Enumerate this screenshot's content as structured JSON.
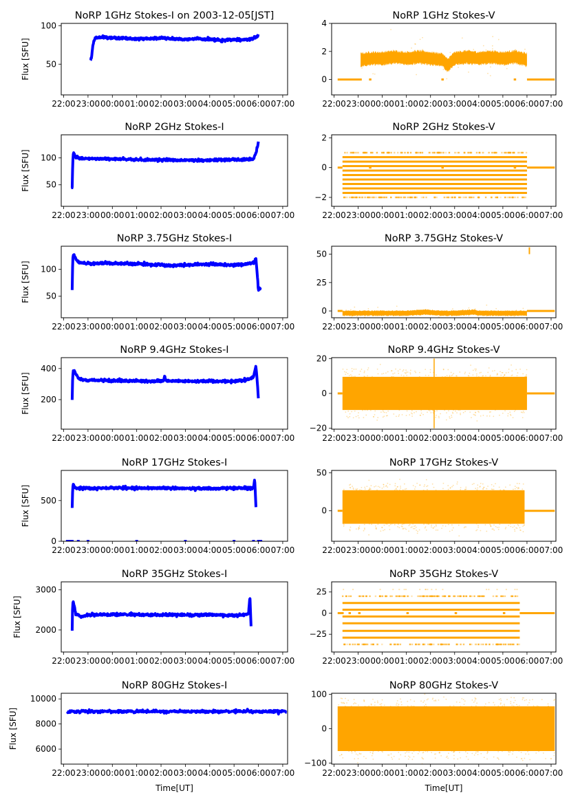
{
  "figure": {
    "suptitle_date": "2003-12-05[JST]",
    "xlabel": "Time[UT]",
    "ylabel": "Flux [SFU]",
    "colors": {
      "stokes_i": "#0000ff",
      "stokes_v": "#ffa500",
      "axis": "#000000"
    }
  },
  "chart_data": [
    {
      "type": "scatter",
      "panel": "1GHz-I",
      "title": "NoRP 1GHz Stokes-I on 2003-12-05[JST]",
      "xlabel": "",
      "ylabel": "Flux [SFU]",
      "xticks": [
        "22:00",
        "23:00",
        "00:00",
        "01:00",
        "02:00",
        "03:00",
        "04:00",
        "05:00",
        "06:00",
        "07:00"
      ],
      "xlim_hours": [
        -0.1,
        9.2
      ],
      "yticks": [
        50,
        100
      ],
      "ylim": [
        10,
        103
      ],
      "series": [
        {
          "name": "Stokes-I",
          "color": "#0000ff",
          "x": [
            1.1,
            1.15,
            1.2,
            1.3,
            1.5,
            2,
            3,
            4,
            4.5,
            5,
            5.5,
            6,
            6.5,
            7,
            7.5,
            7.8,
            7.95,
            8.0
          ],
          "y": [
            55,
            60,
            75,
            84,
            85,
            84,
            83,
            84,
            83,
            82,
            83,
            82,
            81,
            82,
            82,
            83,
            86,
            89
          ]
        }
      ]
    },
    {
      "type": "scatter",
      "panel": "1GHz-V",
      "title": "NoRP 1GHz Stokes-V",
      "xlabel": "",
      "ylabel": "",
      "xticks": [
        "22:00",
        "23:00",
        "00:00",
        "01:00",
        "02:00",
        "03:00",
        "04:00",
        "05:00",
        "06:00",
        "07:00"
      ],
      "xlim_hours": [
        -0.1,
        9.2
      ],
      "yticks": [
        0,
        2,
        4
      ],
      "ylim": [
        -1.1,
        4.0
      ],
      "series": [
        {
          "name": "Stokes-V",
          "color": "#ffa500",
          "x": [
            1.1,
            1.5,
            2,
            2.5,
            3,
            3.5,
            4,
            4.5,
            4.7,
            5,
            5.5,
            6,
            6.5,
            7,
            7.5,
            8.0
          ],
          "y": [
            1.4,
            1.5,
            1.5,
            1.6,
            1.5,
            1.6,
            1.5,
            1.4,
            1.0,
            1.5,
            1.6,
            1.5,
            1.6,
            1.5,
            1.6,
            1.4
          ],
          "spread": 0.45,
          "zero_segments": [
            [
              0.15,
              1.15
            ],
            [
              1.45,
              1.55
            ],
            [
              4.45,
              4.55
            ],
            [
              7.45,
              7.55
            ],
            [
              8.0,
              9.15
            ]
          ]
        }
      ]
    },
    {
      "type": "scatter",
      "panel": "2GHz-I",
      "title": "NoRP 2GHz Stokes-I",
      "xlabel": "",
      "ylabel": "Flux [SFU]",
      "xticks": [
        "22:00",
        "23:00",
        "00:00",
        "01:00",
        "02:00",
        "03:00",
        "04:00",
        "05:00",
        "06:00",
        "07:00"
      ],
      "xlim_hours": [
        -0.1,
        9.2
      ],
      "yticks": [
        50,
        100
      ],
      "ylim": [
        10,
        143
      ],
      "series": [
        {
          "name": "Stokes-I",
          "color": "#0000ff",
          "x": [
            0.35,
            0.37,
            0.4,
            0.5,
            0.7,
            1,
            2,
            3,
            4,
            5,
            6,
            7,
            7.5,
            7.8,
            7.9,
            8.0
          ],
          "y": [
            42,
            90,
            110,
            102,
            99,
            99,
            98,
            97,
            96,
            96,
            96,
            97,
            97,
            98,
            110,
            128
          ]
        }
      ]
    },
    {
      "type": "scatter",
      "panel": "2GHz-V",
      "title": "NoRP 2GHz Stokes-V",
      "xlabel": "",
      "ylabel": "",
      "xticks": [
        "22:00",
        "23:00",
        "00:00",
        "01:00",
        "02:00",
        "03:00",
        "04:00",
        "05:00",
        "06:00",
        "07:00"
      ],
      "xlim_hours": [
        -0.1,
        9.2
      ],
      "yticks": [
        -2,
        0,
        2
      ],
      "ylim": [
        -2.6,
        2.2
      ],
      "series": [
        {
          "name": "Stokes-V",
          "color": "#ffa500",
          "levels": [
            0.7,
            0.4,
            0.1,
            -0.2,
            -0.5,
            -0.8,
            -1.1,
            -1.4,
            -1.7
          ],
          "sparse_levels": [
            1.0,
            -2.0
          ],
          "x_range": [
            0.35,
            8.0
          ],
          "zero_segments": [
            [
              0.15,
              0.35
            ],
            [
              1.45,
              1.55
            ],
            [
              4.45,
              4.55
            ],
            [
              7.45,
              7.55
            ],
            [
              8.0,
              9.15
            ]
          ]
        }
      ]
    },
    {
      "type": "scatter",
      "panel": "3.75GHz-I",
      "title": "NoRP 3.75GHz Stokes-I",
      "xlabel": "",
      "ylabel": "Flux [SFU]",
      "xticks": [
        "22:00",
        "23:00",
        "00:00",
        "01:00",
        "02:00",
        "03:00",
        "04:00",
        "05:00",
        "06:00",
        "07:00"
      ],
      "xlim_hours": [
        -0.1,
        9.2
      ],
      "yticks": [
        50,
        100
      ],
      "ylim": [
        10,
        143
      ],
      "series": [
        {
          "name": "Stokes-I",
          "color": "#0000ff",
          "x": [
            0.35,
            0.37,
            0.4,
            0.6,
            1,
            1.5,
            2,
            3,
            4,
            4.5,
            5,
            6,
            7,
            7.5,
            7.8,
            7.9,
            8.0,
            8.1
          ],
          "y": [
            62,
            118,
            128,
            113,
            110,
            112,
            111,
            110,
            108,
            107,
            108,
            110,
            108,
            110,
            113,
            120,
            62,
            65
          ]
        }
      ]
    },
    {
      "type": "scatter",
      "panel": "3.75GHz-V",
      "title": "NoRP 3.75GHz Stokes-V",
      "xlabel": "",
      "ylabel": "",
      "xticks": [
        "22:00",
        "23:00",
        "00:00",
        "01:00",
        "02:00",
        "03:00",
        "04:00",
        "05:00",
        "06:00",
        "07:00"
      ],
      "xlim_hours": [
        -0.1,
        9.2
      ],
      "yticks": [
        0,
        25,
        50
      ],
      "ylim": [
        -6,
        57
      ],
      "series": [
        {
          "name": "Stokes-V",
          "color": "#ffa500",
          "x": [
            0.35,
            1,
            2,
            3,
            3.8,
            4.5,
            5,
            5.8,
            6,
            7,
            8.0
          ],
          "y": [
            -2,
            -2,
            -2,
            -2,
            -1,
            -2,
            -2,
            -1,
            -2,
            -2,
            -2
          ],
          "spread": 2.2,
          "outlier": {
            "x": 8.1,
            "y": 53
          },
          "zero_segments": [
            [
              0.15,
              0.35
            ],
            [
              8.0,
              9.15
            ]
          ]
        }
      ]
    },
    {
      "type": "scatter",
      "panel": "9.4GHz-I",
      "title": "NoRP 9.4GHz Stokes-I",
      "xlabel": "",
      "ylabel": "Flux [SFU]",
      "xticks": [
        "22:00",
        "23:00",
        "00:00",
        "01:00",
        "02:00",
        "03:00",
        "04:00",
        "05:00",
        "06:00",
        "07:00"
      ],
      "xlim_hours": [
        -0.1,
        9.2
      ],
      "yticks": [
        200,
        400
      ],
      "ylim": [
        10,
        470
      ],
      "series": [
        {
          "name": "Stokes-I",
          "color": "#0000ff",
          "x": [
            0.35,
            0.37,
            0.42,
            0.6,
            1,
            2,
            3,
            4,
            4.1,
            4.15,
            4.2,
            5,
            6,
            7,
            7.5,
            7.8,
            7.9,
            8.0
          ],
          "y": [
            200,
            360,
            390,
            335,
            325,
            322,
            320,
            318,
            320,
            350,
            322,
            318,
            318,
            318,
            325,
            345,
            420,
            210
          ]
        }
      ]
    },
    {
      "type": "scatter",
      "panel": "9.4GHz-V",
      "title": "NoRP 9.4GHz Stokes-V",
      "xlabel": "",
      "ylabel": "",
      "xticks": [
        "22:00",
        "23:00",
        "00:00",
        "01:00",
        "02:00",
        "03:00",
        "04:00",
        "05:00",
        "06:00",
        "07:00"
      ],
      "xlim_hours": [
        -0.1,
        9.2
      ],
      "yticks": [
        -20,
        0,
        20
      ],
      "ylim": [
        -20.5,
        20.5
      ],
      "series": [
        {
          "name": "Stokes-V",
          "color": "#ffa500",
          "x_range": [
            0.35,
            8.0
          ],
          "center": 0,
          "core": 9.5,
          "halo": 14,
          "spike": {
            "x": 4.15,
            "ymin": -20,
            "ymax": 20
          },
          "zero_segments": [
            [
              0.15,
              0.35
            ],
            [
              8.0,
              9.15
            ]
          ]
        }
      ]
    },
    {
      "type": "scatter",
      "panel": "17GHz-I",
      "title": "NoRP 17GHz Stokes-I",
      "xlabel": "",
      "ylabel": "Flux [SFU]",
      "xticks": [
        "22:00",
        "23:00",
        "00:00",
        "01:00",
        "02:00",
        "03:00",
        "04:00",
        "05:00",
        "06:00",
        "07:00"
      ],
      "xlim_hours": [
        -0.1,
        9.2
      ],
      "yticks": [
        0,
        500
      ],
      "ylim": [
        0,
        870
      ],
      "series": [
        {
          "name": "Stokes-I",
          "color": "#0000ff",
          "x": [
            0.35,
            0.37,
            0.4,
            0.5,
            1,
            2,
            3,
            4,
            5,
            6,
            7,
            7.5,
            7.7,
            7.8,
            7.85,
            7.9
          ],
          "y": [
            410,
            680,
            700,
            650,
            650,
            655,
            655,
            652,
            650,
            650,
            652,
            655,
            648,
            660,
            760,
            420
          ],
          "zero_markers": [
            0.15,
            0.25,
            0.35,
            0.6,
            1.0,
            3.0,
            5.0,
            7.0,
            7.8,
            8.0,
            8.1
          ]
        }
      ]
    },
    {
      "type": "scatter",
      "panel": "17GHz-V",
      "title": "NoRP 17GHz Stokes-V",
      "xlabel": "",
      "ylabel": "",
      "xticks": [
        "22:00",
        "23:00",
        "00:00",
        "01:00",
        "02:00",
        "03:00",
        "04:00",
        "05:00",
        "06:00",
        "07:00"
      ],
      "xlim_hours": [
        -0.1,
        9.2
      ],
      "yticks": [
        0,
        50
      ],
      "ylim": [
        -40,
        53
      ],
      "series": [
        {
          "name": "Stokes-V",
          "color": "#ffa500",
          "x_range": [
            0.35,
            7.9
          ],
          "center": 5,
          "core": 22,
          "halo": 32,
          "zero_segments": [
            [
              0.15,
              0.35
            ],
            [
              7.9,
              9.15
            ]
          ]
        }
      ]
    },
    {
      "type": "scatter",
      "panel": "35GHz-I",
      "title": "NoRP 35GHz Stokes-I",
      "xlabel": "",
      "ylabel": "Flux [SFU]",
      "xticks": [
        "22:00",
        "23:00",
        "00:00",
        "01:00",
        "02:00",
        "03:00",
        "04:00",
        "05:00",
        "06:00",
        "07:00"
      ],
      "xlim_hours": [
        -0.1,
        9.2
      ],
      "yticks": [
        2000,
        3000
      ],
      "ylim": [
        1450,
        3200
      ],
      "series": [
        {
          "name": "Stokes-I",
          "color": "#0000ff",
          "x": [
            0.35,
            0.37,
            0.4,
            0.5,
            0.7,
            1,
            2,
            3,
            4,
            5,
            6,
            6.3,
            7,
            7.5,
            7.6,
            7.65,
            7.7
          ],
          "y": [
            2000,
            2650,
            2700,
            2400,
            2330,
            2370,
            2390,
            2385,
            2370,
            2375,
            2380,
            2380,
            2360,
            2390,
            2420,
            2860,
            2100
          ]
        }
      ]
    },
    {
      "type": "scatter",
      "panel": "35GHz-V",
      "title": "NoRP 35GHz Stokes-V",
      "xlabel": "",
      "ylabel": "",
      "xticks": [
        "22:00",
        "23:00",
        "00:00",
        "01:00",
        "02:00",
        "03:00",
        "04:00",
        "05:00",
        "06:00",
        "07:00"
      ],
      "xlim_hours": [
        -0.1,
        9.2
      ],
      "yticks": [
        -25,
        0,
        25
      ],
      "ylim": [
        -46,
        37
      ],
      "series": [
        {
          "name": "Stokes-V",
          "color": "#ffa500",
          "levels": [
            12,
            4,
            -4,
            -12,
            -21,
            -29
          ],
          "sparse_levels": [
            20,
            -37
          ],
          "rare_levels": [
            28
          ],
          "x_range": [
            0.35,
            7.7
          ],
          "zero_segments": [
            [
              0.15,
              0.4
            ],
            [
              0.6,
              0.7
            ],
            [
              1.0,
              1.1
            ],
            [
              3.0,
              3.1
            ],
            [
              5.0,
              5.1
            ],
            [
              7.0,
              7.1
            ],
            [
              7.7,
              9.15
            ]
          ]
        }
      ]
    },
    {
      "type": "scatter",
      "panel": "80GHz-I",
      "title": "NoRP 80GHz Stokes-I",
      "xlabel": "Time[UT]",
      "ylabel": "Flux [SFU]",
      "xticks": [
        "22:00",
        "23:00",
        "00:00",
        "01:00",
        "02:00",
        "03:00",
        "04:00",
        "05:00",
        "06:00",
        "07:00"
      ],
      "xlim_hours": [
        -0.1,
        9.2
      ],
      "yticks": [
        6000,
        8000,
        10000
      ],
      "ylim": [
        4800,
        10450
      ],
      "series": [
        {
          "name": "Stokes-I",
          "color": "#0000ff",
          "x": [
            0.15,
            1,
            2,
            3,
            4,
            5,
            6,
            7,
            7.5,
            7.55,
            7.6,
            8,
            9.15
          ],
          "y": [
            9000,
            9000,
            9000,
            9000,
            9000,
            9000,
            9000,
            9000,
            9000,
            9200,
            9000,
            9000,
            9000
          ]
        }
      ]
    },
    {
      "type": "scatter",
      "panel": "80GHz-V",
      "title": "NoRP 80GHz Stokes-V",
      "xlabel": "Time[UT]",
      "ylabel": "",
      "xticks": [
        "22:00",
        "23:00",
        "00:00",
        "01:00",
        "02:00",
        "03:00",
        "04:00",
        "05:00",
        "06:00",
        "07:00"
      ],
      "xlim_hours": [
        -0.1,
        9.2
      ],
      "yticks": [
        -100,
        0,
        100
      ],
      "ylim": [
        -103,
        103
      ],
      "series": [
        {
          "name": "Stokes-V",
          "color": "#ffa500",
          "x_range": [
            0.15,
            9.15
          ],
          "center": 0,
          "core": 65,
          "halo": 90
        }
      ]
    }
  ]
}
